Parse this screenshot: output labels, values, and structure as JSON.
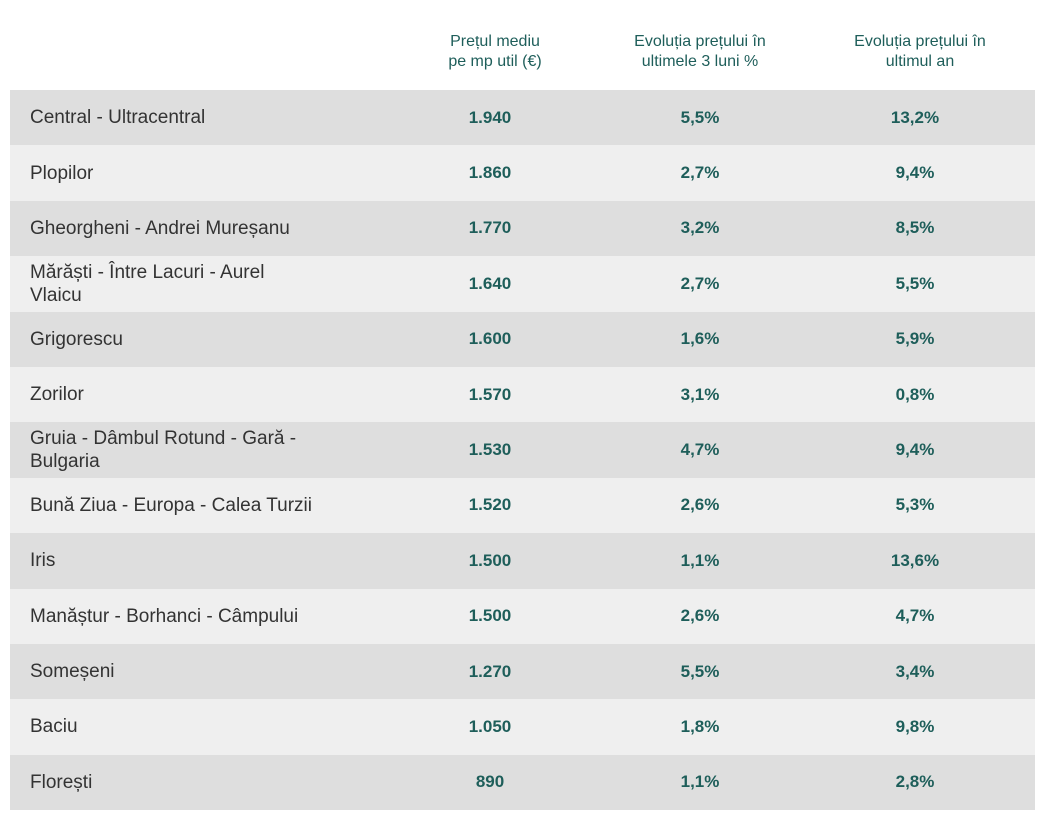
{
  "header": {
    "col1": "Prețul mediu\npe mp util (€)",
    "col2": "Evoluția prețului în\nultimele 3 luni %",
    "col3": "Evoluția prețului în\nultimul an"
  },
  "rows": [
    {
      "zone": "Central - Ultracentral",
      "price": "1.940",
      "change_3m": "5,5%",
      "change_1y": "13,2%"
    },
    {
      "zone": "Plopilor",
      "price": "1.860",
      "change_3m": "2,7%",
      "change_1y": "9,4%"
    },
    {
      "zone": "Gheorgheni - Andrei Mureșanu",
      "price": "1.770",
      "change_3m": "3,2%",
      "change_1y": "8,5%"
    },
    {
      "zone": "Mărăști - Între Lacuri - Aurel\nVlaicu",
      "price": "1.640",
      "change_3m": "2,7%",
      "change_1y": "5,5%"
    },
    {
      "zone": "Grigorescu",
      "price": "1.600",
      "change_3m": "1,6%",
      "change_1y": "5,9%"
    },
    {
      "zone": "Zorilor",
      "price": "1.570",
      "change_3m": "3,1%",
      "change_1y": "0,8%"
    },
    {
      "zone": "Gruia - Dâmbul Rotund - Gară -\nBulgaria",
      "price": "1.530",
      "change_3m": "4,7%",
      "change_1y": "9,4%"
    },
    {
      "zone": "Bună Ziua - Europa - Calea Turzii",
      "price": "1.520",
      "change_3m": "2,6%",
      "change_1y": "5,3%"
    },
    {
      "zone": "Iris",
      "price": "1.500",
      "change_3m": "1,1%",
      "change_1y": "13,6%"
    },
    {
      "zone": "Manăștur - Borhanci - Câmpului",
      "price": "1.500",
      "change_3m": "2,6%",
      "change_1y": "4,7%"
    },
    {
      "zone": "Someșeni",
      "price": "1.270",
      "change_3m": "5,5%",
      "change_1y": "3,4%"
    },
    {
      "zone": "Baciu",
      "price": "1.050",
      "change_3m": "1,8%",
      "change_1y": "9,8%"
    },
    {
      "zone": "Florești",
      "price": "890",
      "change_3m": "1,1%",
      "change_1y": "2,8%"
    }
  ]
}
